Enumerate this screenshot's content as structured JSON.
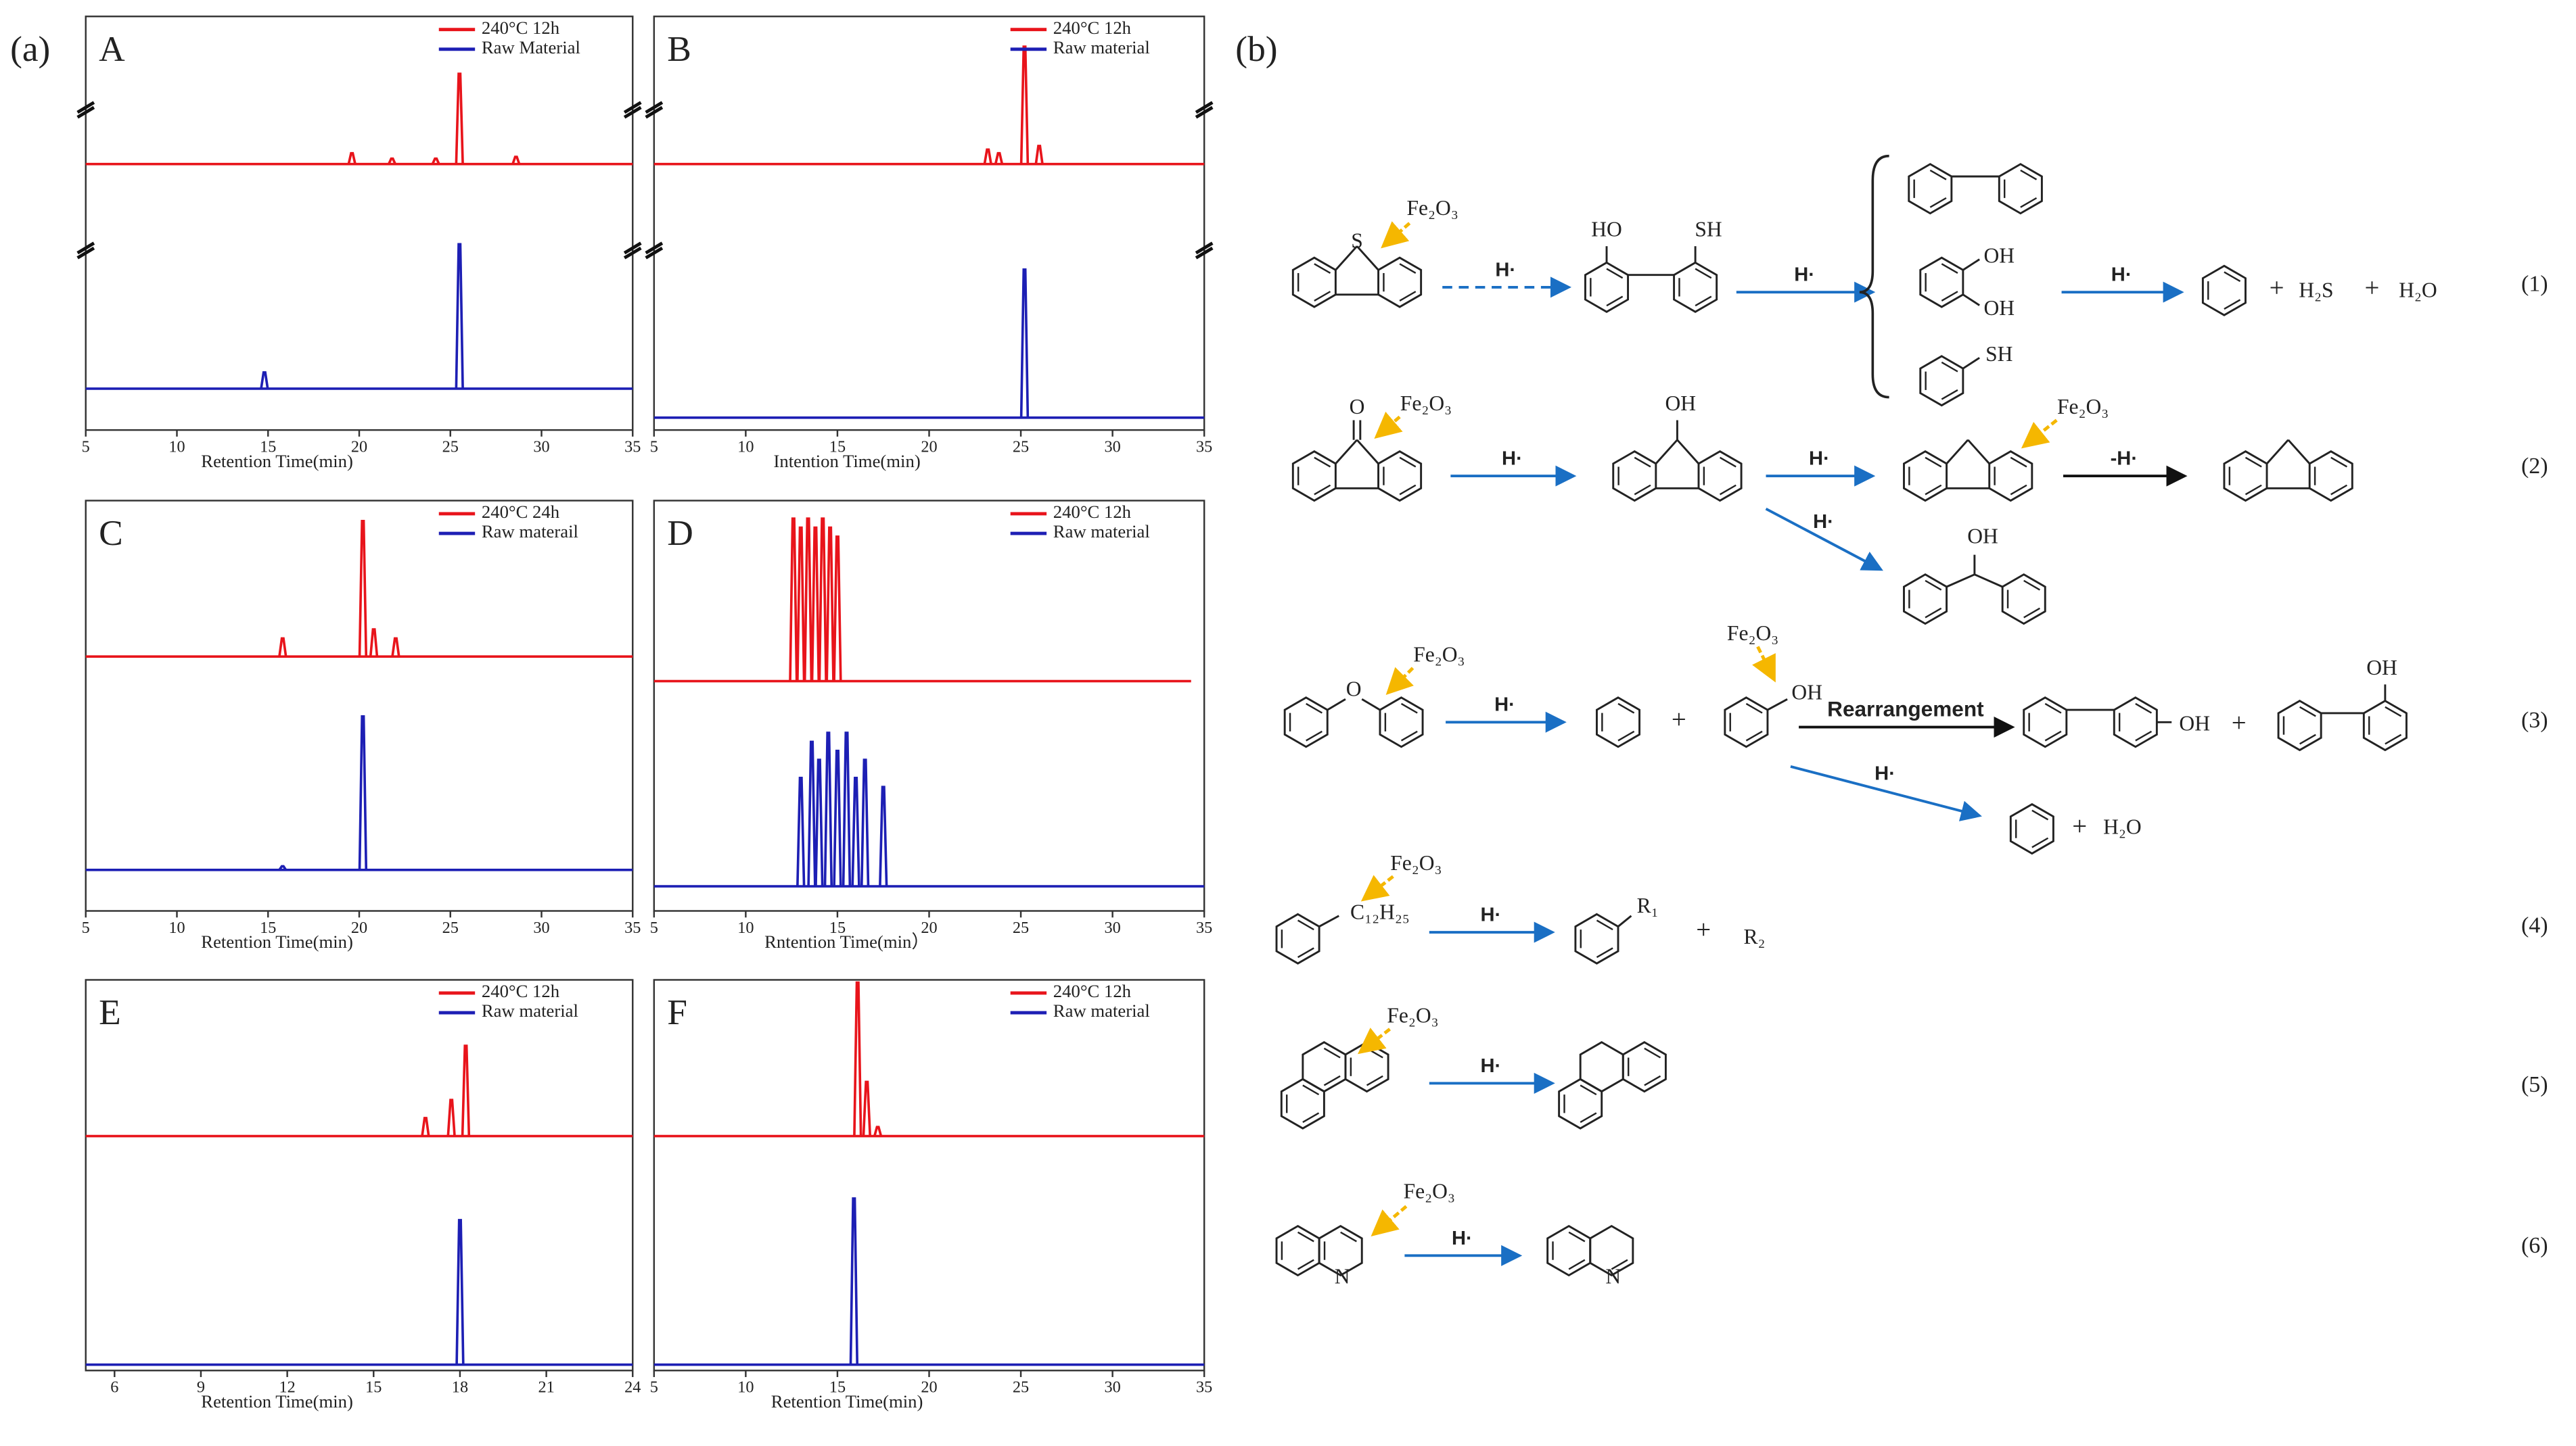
{
  "panel_a_label": "(a)",
  "panel_b_label": "(b)",
  "chart_data": [
    {
      "type": "line",
      "title": "A",
      "xlabel": "Retention Time(min)",
      "xlim": [
        5,
        35
      ],
      "xticks": [
        5,
        10,
        15,
        20,
        25,
        30,
        35
      ],
      "series": [
        {
          "name": "240°C 12h",
          "color": "#e8141b",
          "x": [
            19.6,
            21.8,
            24.2,
            25.5,
            28.6
          ],
          "values": [
            0.06,
            0.03,
            0.03,
            0.5,
            0.04
          ]
        },
        {
          "name": "Raw Material",
          "color": "#1d1fb4",
          "x": [
            14.8,
            25.5
          ],
          "values": [
            0.09,
            0.8
          ]
        }
      ]
    },
    {
      "type": "line",
      "title": "B",
      "xlabel": "Intention Time(min)",
      "xlim": [
        5,
        35
      ],
      "xticks": [
        5,
        10,
        15,
        20,
        25,
        30,
        35
      ],
      "series": [
        {
          "name": "240°C 12h",
          "color": "#e8141b",
          "x": [
            23.2,
            23.8,
            25.2,
            26.0
          ],
          "values": [
            0.08,
            0.06,
            0.65,
            0.1
          ]
        },
        {
          "name": "Raw material",
          "color": "#1d1fb4",
          "x": [
            25.2
          ],
          "values": [
            0.82
          ]
        }
      ]
    },
    {
      "type": "line",
      "title": "C",
      "xlabel": "Retention Time(min)",
      "xlim": [
        5,
        35
      ],
      "xticks": [
        5,
        10,
        15,
        20,
        25,
        30,
        35
      ],
      "series": [
        {
          "name": "240°C 24h",
          "color": "#e8141b",
          "x": [
            15.8,
            20.2,
            20.8,
            22.0
          ],
          "values": [
            0.1,
            0.75,
            0.15,
            0.1
          ]
        },
        {
          "name": "Raw materail",
          "color": "#1d1fb4",
          "x": [
            15.8,
            20.2
          ],
          "values": [
            0.02,
            0.85
          ]
        }
      ]
    },
    {
      "type": "line",
      "title": "D",
      "xlabel": "Rntention Time(min）",
      "xlim": [
        5,
        35
      ],
      "xticks": [
        5,
        10,
        15,
        20,
        25,
        30,
        35
      ],
      "series": [
        {
          "name": "240°C 12h",
          "color": "#e8141b",
          "x": [
            12.6,
            13.0,
            13.4,
            13.8,
            14.2,
            14.6,
            15.0
          ],
          "values": [
            0.9,
            0.85,
            0.9,
            0.85,
            0.9,
            0.85,
            0.8
          ]
        },
        {
          "name": "Raw material",
          "color": "#1d1fb4",
          "x": [
            13.0,
            13.6,
            14.0,
            14.5,
            15.0,
            15.5,
            16.0,
            16.5,
            17.5
          ],
          "values": [
            0.6,
            0.8,
            0.7,
            0.85,
            0.75,
            0.85,
            0.6,
            0.7,
            0.55
          ]
        }
      ]
    },
    {
      "type": "line",
      "title": "E",
      "xlabel": "Retention Time(min)",
      "xlim": [
        5,
        24
      ],
      "xticks": [
        6,
        9,
        12,
        15,
        18,
        21,
        24
      ],
      "series": [
        {
          "name": "240°C 12h",
          "color": "#e8141b",
          "x": [
            16.8,
            17.7,
            18.2
          ],
          "values": [
            0.1,
            0.2,
            0.5
          ]
        },
        {
          "name": "Raw material",
          "color": "#1d1fb4",
          "x": [
            18.0
          ],
          "values": [
            0.8
          ]
        }
      ]
    },
    {
      "type": "line",
      "title": "F",
      "xlabel": "Retention Time(min)",
      "xlim": [
        5,
        35
      ],
      "xticks": [
        5,
        10,
        15,
        20,
        25,
        30,
        35
      ],
      "series": [
        {
          "name": "240°C 12h",
          "color": "#e8141b",
          "x": [
            16.1,
            16.6,
            17.2
          ],
          "values": [
            0.85,
            0.3,
            0.05
          ]
        },
        {
          "name": "Raw material",
          "color": "#1d1fb4",
          "x": [
            15.9
          ],
          "values": [
            0.92
          ]
        }
      ]
    }
  ],
  "scheme": {
    "catalyst": "Fe₂O₃",
    "radical": "H·",
    "loss": "-H·",
    "rearrangement": "Rearrangement",
    "plus": "+",
    "h2s": "H₂S",
    "h2o": "H₂O",
    "alkyl": "C₁₂H₂₅",
    "r1": "R₁",
    "r2": "R₂",
    "oh": "OH",
    "ho": "HO",
    "sh": "SH",
    "s": "S",
    "o": "O",
    "n": "N",
    "numbers": [
      "(1)",
      "(2)",
      "(3)",
      "(4)",
      "(5)",
      "(6)"
    ]
  }
}
